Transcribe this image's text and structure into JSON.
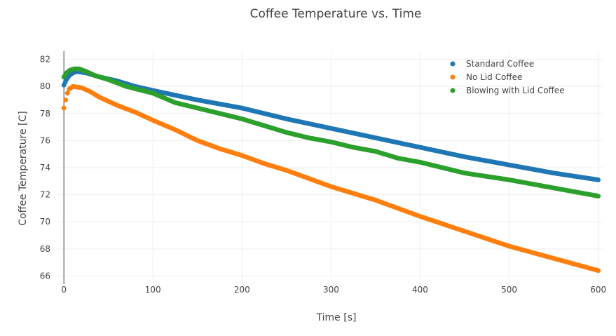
{
  "chart_data": {
    "type": "scatter",
    "title": "Coffee Temperature vs. Time",
    "xlabel": "Time [s]",
    "ylabel": "Coffee Temperature [C]",
    "xlim": [
      -8,
      605
    ],
    "ylim": [
      65.4,
      82.6
    ],
    "xticks": [
      0,
      100,
      200,
      300,
      400,
      500,
      600
    ],
    "yticks": [
      66,
      68,
      70,
      72,
      74,
      76,
      78,
      80,
      82
    ],
    "grid": true,
    "legend_position": "top-right",
    "series": [
      {
        "name": "Standard Coffee",
        "color": "#1f77b4",
        "points": [
          [
            0,
            80.1
          ],
          [
            3,
            80.5
          ],
          [
            6,
            80.8
          ],
          [
            10,
            81.0
          ],
          [
            15,
            81.1
          ],
          [
            25,
            81.0
          ],
          [
            40,
            80.7
          ],
          [
            60,
            80.4
          ],
          [
            80,
            80.0
          ],
          [
            100,
            79.7
          ],
          [
            150,
            79.0
          ],
          [
            200,
            78.4
          ],
          [
            250,
            77.6
          ],
          [
            300,
            76.9
          ],
          [
            350,
            76.2
          ],
          [
            400,
            75.5
          ],
          [
            450,
            74.8
          ],
          [
            500,
            74.2
          ],
          [
            550,
            73.6
          ],
          [
            600,
            73.1
          ]
        ]
      },
      {
        "name": "No Lid Coffee",
        "color": "#ff7f0e",
        "points": [
          [
            0,
            78.4
          ],
          [
            2,
            79.0
          ],
          [
            4,
            79.5
          ],
          [
            6,
            79.8
          ],
          [
            10,
            80.0
          ],
          [
            20,
            79.9
          ],
          [
            30,
            79.6
          ],
          [
            40,
            79.2
          ],
          [
            50,
            78.9
          ],
          [
            60,
            78.6
          ],
          [
            80,
            78.1
          ],
          [
            100,
            77.5
          ],
          [
            125,
            76.8
          ],
          [
            150,
            76.0
          ],
          [
            175,
            75.4
          ],
          [
            200,
            74.9
          ],
          [
            225,
            74.3
          ],
          [
            250,
            73.8
          ],
          [
            275,
            73.2
          ],
          [
            300,
            72.6
          ],
          [
            350,
            71.6
          ],
          [
            400,
            70.4
          ],
          [
            450,
            69.3
          ],
          [
            500,
            68.2
          ],
          [
            550,
            67.3
          ],
          [
            600,
            66.4
          ]
        ]
      },
      {
        "name": "Blowing with Lid Coffee",
        "color": "#2ca02c",
        "points": [
          [
            0,
            80.7
          ],
          [
            3,
            81.0
          ],
          [
            7,
            81.2
          ],
          [
            12,
            81.3
          ],
          [
            17,
            81.3
          ],
          [
            25,
            81.1
          ],
          [
            35,
            80.8
          ],
          [
            50,
            80.5
          ],
          [
            70,
            80.0
          ],
          [
            100,
            79.5
          ],
          [
            125,
            78.8
          ],
          [
            150,
            78.4
          ],
          [
            175,
            78.0
          ],
          [
            200,
            77.6
          ],
          [
            225,
            77.1
          ],
          [
            250,
            76.6
          ],
          [
            275,
            76.2
          ],
          [
            300,
            75.9
          ],
          [
            325,
            75.5
          ],
          [
            350,
            75.2
          ],
          [
            375,
            74.7
          ],
          [
            400,
            74.4
          ],
          [
            450,
            73.6
          ],
          [
            500,
            73.1
          ],
          [
            550,
            72.5
          ],
          [
            600,
            71.9
          ]
        ]
      }
    ]
  }
}
